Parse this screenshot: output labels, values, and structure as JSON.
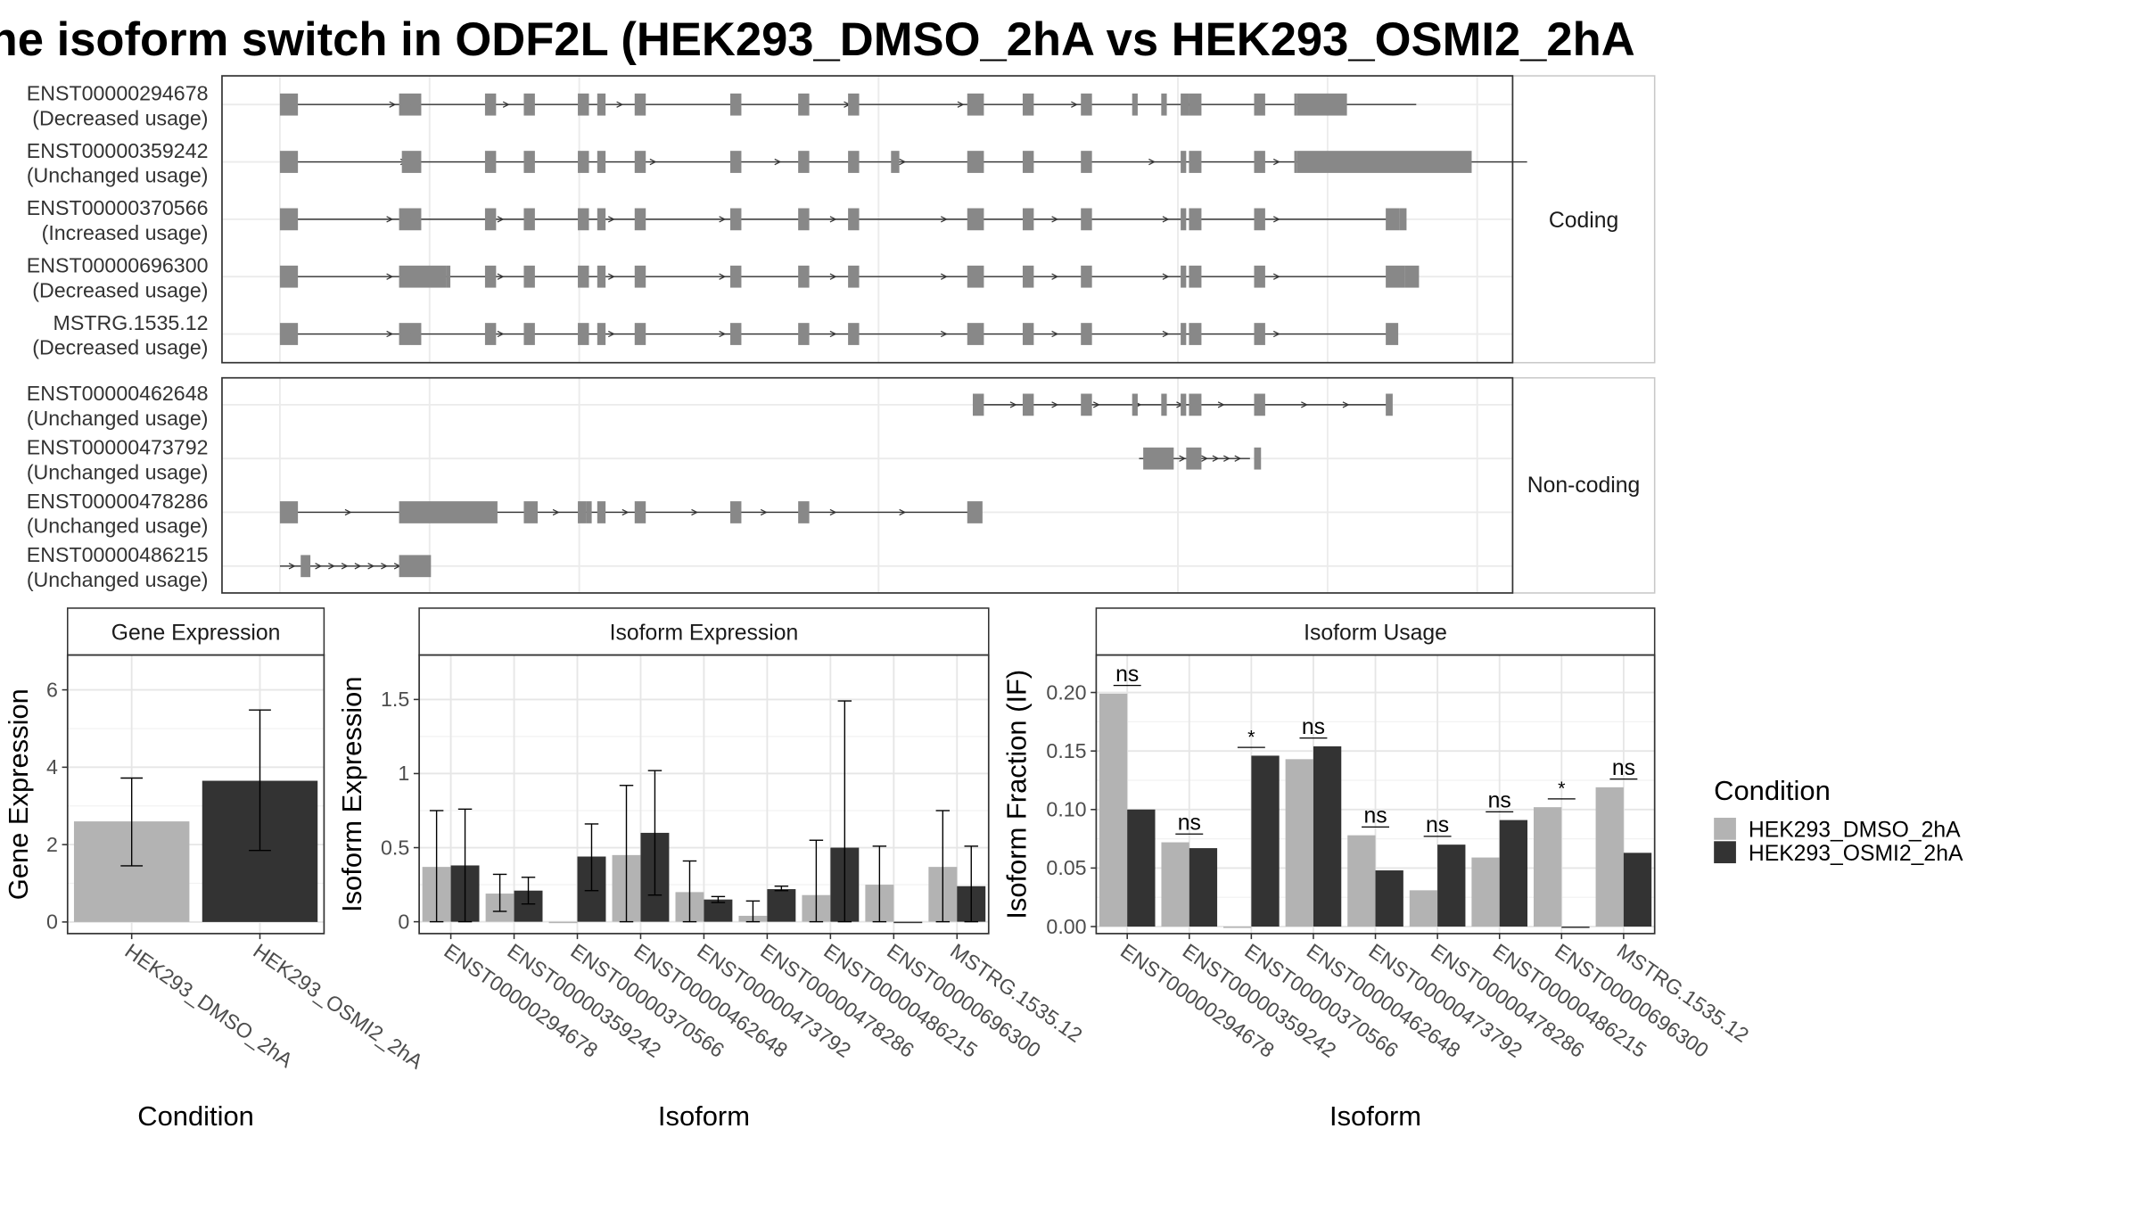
{
  "title": "ne isoform switch in ODF2L (HEK293_DMSO_2hA vs HEK293_OSMI2_2hA",
  "structure": {
    "coding_label": "Coding",
    "noncoding_label": "Non-coding",
    "coding": [
      {
        "id": "ENST00000294678",
        "usage": "(Decreased usage)",
        "intron_from": 0.0,
        "intron_to": 0.82,
        "exons": [
          [
            0.0,
            0.013
          ],
          [
            0.086,
            0.094
          ],
          [
            0.094,
            0.102
          ],
          [
            0.148,
            0.156
          ],
          [
            0.176,
            0.184
          ],
          [
            0.215,
            0.223
          ],
          [
            0.229,
            0.235
          ],
          [
            0.256,
            0.264
          ],
          [
            0.325,
            0.333
          ],
          [
            0.374,
            0.382
          ],
          [
            0.41,
            0.418
          ],
          [
            0.496,
            0.508
          ],
          [
            0.536,
            0.544
          ],
          [
            0.578,
            0.586
          ],
          [
            0.615,
            0.619
          ],
          [
            0.636,
            0.64
          ],
          [
            0.65,
            0.656
          ],
          [
            0.656,
            0.665
          ],
          [
            0.703,
            0.711
          ],
          [
            0.732,
            0.734
          ],
          [
            0.734,
            0.77
          ]
        ]
      },
      {
        "id": "ENST00000359242",
        "usage": "(Unchanged usage)",
        "intron_from": 0.0,
        "intron_to": 0.9,
        "exons": [
          [
            0.0,
            0.013
          ],
          [
            0.088,
            0.102
          ],
          [
            0.148,
            0.156
          ],
          [
            0.176,
            0.184
          ],
          [
            0.215,
            0.223
          ],
          [
            0.229,
            0.235
          ],
          [
            0.256,
            0.264
          ],
          [
            0.325,
            0.333
          ],
          [
            0.374,
            0.382
          ],
          [
            0.41,
            0.418
          ],
          [
            0.441,
            0.447
          ],
          [
            0.496,
            0.508
          ],
          [
            0.536,
            0.544
          ],
          [
            0.578,
            0.586
          ],
          [
            0.65,
            0.654
          ],
          [
            0.656,
            0.665
          ],
          [
            0.703,
            0.711
          ],
          [
            0.732,
            0.734
          ],
          [
            0.734,
            0.86
          ]
        ]
      },
      {
        "id": "ENST00000370566",
        "usage": "(Increased usage)",
        "intron_from": 0.0,
        "intron_to": 0.8,
        "exons": [
          [
            0.0,
            0.013
          ],
          [
            0.086,
            0.094
          ],
          [
            0.094,
            0.102
          ],
          [
            0.148,
            0.156
          ],
          [
            0.176,
            0.184
          ],
          [
            0.215,
            0.223
          ],
          [
            0.229,
            0.235
          ],
          [
            0.256,
            0.264
          ],
          [
            0.325,
            0.333
          ],
          [
            0.374,
            0.382
          ],
          [
            0.41,
            0.418
          ],
          [
            0.496,
            0.508
          ],
          [
            0.536,
            0.544
          ],
          [
            0.578,
            0.586
          ],
          [
            0.65,
            0.654
          ],
          [
            0.656,
            0.665
          ],
          [
            0.703,
            0.711
          ],
          [
            0.798,
            0.808
          ],
          [
            0.808,
            0.813
          ]
        ]
      },
      {
        "id": "ENST00000696300",
        "usage": "(Decreased usage)",
        "intron_from": 0.0,
        "intron_to": 0.8,
        "exons": [
          [
            0.0,
            0.013
          ],
          [
            0.086,
            0.12
          ],
          [
            0.12,
            0.123
          ],
          [
            0.148,
            0.156
          ],
          [
            0.176,
            0.184
          ],
          [
            0.215,
            0.223
          ],
          [
            0.229,
            0.235
          ],
          [
            0.256,
            0.264
          ],
          [
            0.325,
            0.333
          ],
          [
            0.374,
            0.382
          ],
          [
            0.41,
            0.418
          ],
          [
            0.496,
            0.508
          ],
          [
            0.536,
            0.544
          ],
          [
            0.578,
            0.586
          ],
          [
            0.65,
            0.654
          ],
          [
            0.656,
            0.665
          ],
          [
            0.703,
            0.711
          ],
          [
            0.798,
            0.812
          ],
          [
            0.812,
            0.822
          ]
        ]
      },
      {
        "id": "MSTRG.1535.12",
        "usage": "(Decreased usage)",
        "intron_from": 0.0,
        "intron_to": 0.8,
        "exons": [
          [
            0.0,
            0.013
          ],
          [
            0.086,
            0.094
          ],
          [
            0.094,
            0.102
          ],
          [
            0.148,
            0.156
          ],
          [
            0.176,
            0.184
          ],
          [
            0.215,
            0.223
          ],
          [
            0.229,
            0.235
          ],
          [
            0.256,
            0.264
          ],
          [
            0.325,
            0.333
          ],
          [
            0.374,
            0.382
          ],
          [
            0.41,
            0.418
          ],
          [
            0.496,
            0.508
          ],
          [
            0.536,
            0.544
          ],
          [
            0.578,
            0.586
          ],
          [
            0.65,
            0.654
          ],
          [
            0.656,
            0.665
          ],
          [
            0.703,
            0.711
          ],
          [
            0.798,
            0.807
          ]
        ]
      }
    ],
    "noncoding": [
      {
        "id": "ENST00000462648",
        "usage": "(Unchanged usage)",
        "intron_from": 0.5,
        "intron_to": 0.8,
        "exons": [
          [
            0.5,
            0.508
          ],
          [
            0.536,
            0.544
          ],
          [
            0.578,
            0.586
          ],
          [
            0.615,
            0.619
          ],
          [
            0.636,
            0.64
          ],
          [
            0.65,
            0.654
          ],
          [
            0.656,
            0.665
          ],
          [
            0.703,
            0.711
          ],
          [
            0.798,
            0.803
          ]
        ]
      },
      {
        "id": "ENST00000473792",
        "usage": "(Unchanged usage)",
        "intron_from": 0.62,
        "intron_to": 0.7,
        "exons": [
          [
            0.623,
            0.645
          ],
          [
            0.654,
            0.665
          ],
          [
            0.703,
            0.708
          ]
        ]
      },
      {
        "id": "ENST00000478286",
        "usage": "(Unchanged usage)",
        "intron_from": 0.0,
        "intron_to": 0.5,
        "exons": [
          [
            0.0,
            0.013
          ],
          [
            0.086,
            0.157
          ],
          [
            0.176,
            0.186
          ],
          [
            0.215,
            0.221
          ],
          [
            0.221,
            0.225
          ],
          [
            0.229,
            0.235
          ],
          [
            0.256,
            0.264
          ],
          [
            0.325,
            0.333
          ],
          [
            0.374,
            0.382
          ],
          [
            0.496,
            0.507
          ]
        ]
      },
      {
        "id": "ENST00000486215",
        "usage": "(Unchanged usage)",
        "intron_from": 0.0,
        "intron_to": 0.095,
        "exons": [
          [
            0.015,
            0.022
          ],
          [
            0.086,
            0.109
          ]
        ]
      }
    ]
  },
  "legend": {
    "title": "Condition",
    "entries": [
      {
        "label": "HEK293_DMSO_2hA",
        "color": "#b3b3b3"
      },
      {
        "label": "HEK293_OSMI2_2hA",
        "color": "#333333"
      }
    ]
  },
  "chart_data": [
    {
      "type": "bar",
      "title": "Gene Expression",
      "xlabel": "Condition",
      "ylabel": "Gene Expression",
      "ylim": [
        -0.3,
        6.9
      ],
      "yticks": [
        0,
        2,
        4,
        6
      ],
      "categories": [
        "HEK293_DMSO_2hA",
        "HEK293_OSMI2_2hA"
      ],
      "values": [
        2.6,
        3.65
      ],
      "errors": [
        [
          1.45,
          3.72
        ],
        [
          1.85,
          5.48
        ]
      ],
      "colors": [
        "#b3b3b3",
        "#333333"
      ]
    },
    {
      "type": "bar",
      "title": "Isoform Expression",
      "xlabel": "Isoform",
      "ylabel": "Isoform Expression",
      "ylim": [
        -0.08,
        1.8
      ],
      "yticks": [
        0.0,
        0.5,
        1.0,
        1.5
      ],
      "categories": [
        "ENST00000294678",
        "ENST00000359242",
        "ENST00000370566",
        "ENST00000462648",
        "ENST00000473792",
        "ENST00000478286",
        "ENST00000486215",
        "ENST00000696300",
        "MSTRG.1535.12"
      ],
      "series": [
        {
          "name": "HEK293_DMSO_2hA",
          "color": "#b3b3b3",
          "values": [
            0.37,
            0.19,
            0.0,
            0.45,
            0.2,
            0.04,
            0.18,
            0.25,
            0.37
          ],
          "errors": [
            [
              0.0,
              0.75
            ],
            [
              0.07,
              0.32
            ],
            [
              0.0,
              0.0
            ],
            [
              0.0,
              0.92
            ],
            [
              0.0,
              0.41
            ],
            [
              0.0,
              0.14
            ],
            [
              0.0,
              0.55
            ],
            [
              0.0,
              0.51
            ],
            [
              0.0,
              0.75
            ]
          ]
        },
        {
          "name": "HEK293_OSMI2_2hA",
          "color": "#333333",
          "values": [
            0.38,
            0.21,
            0.44,
            0.6,
            0.15,
            0.22,
            0.5,
            0.0,
            0.24
          ],
          "errors": [
            [
              0.0,
              0.76
            ],
            [
              0.12,
              0.3
            ],
            [
              0.21,
              0.66
            ],
            [
              0.18,
              1.02
            ],
            [
              0.13,
              0.17
            ],
            [
              0.21,
              0.24
            ],
            [
              0.0,
              1.49
            ],
            [
              0.0,
              0.0
            ],
            [
              0.0,
              0.51
            ]
          ]
        }
      ]
    },
    {
      "type": "bar",
      "title": "Isoform Usage",
      "xlabel": "Isoform",
      "ylabel": "Isoform Fraction (IF)",
      "ylim": [
        -0.006,
        0.232
      ],
      "yticks": [
        0.0,
        0.05,
        0.1,
        0.15,
        0.2
      ],
      "ytick_labels": [
        "0.00",
        "0.05",
        "0.10",
        "0.15",
        "0.20"
      ],
      "categories": [
        "ENST00000294678",
        "ENST00000359242",
        "ENST00000370566",
        "ENST00000462648",
        "ENST00000473792",
        "ENST00000478286",
        "ENST00000486215",
        "ENST00000696300",
        "MSTRG.1535.12"
      ],
      "series": [
        {
          "name": "HEK293_DMSO_2hA",
          "color": "#b3b3b3",
          "values": [
            0.199,
            0.072,
            0.0,
            0.143,
            0.078,
            0.031,
            0.059,
            0.102,
            0.119
          ]
        },
        {
          "name": "HEK293_OSMI2_2hA",
          "color": "#333333",
          "values": [
            0.1,
            0.067,
            0.146,
            0.154,
            0.048,
            0.07,
            0.091,
            0.0,
            0.063
          ]
        }
      ],
      "annotations": [
        "ns",
        "ns",
        "*",
        "ns",
        "ns",
        "ns",
        "ns",
        "*",
        "ns"
      ]
    }
  ]
}
